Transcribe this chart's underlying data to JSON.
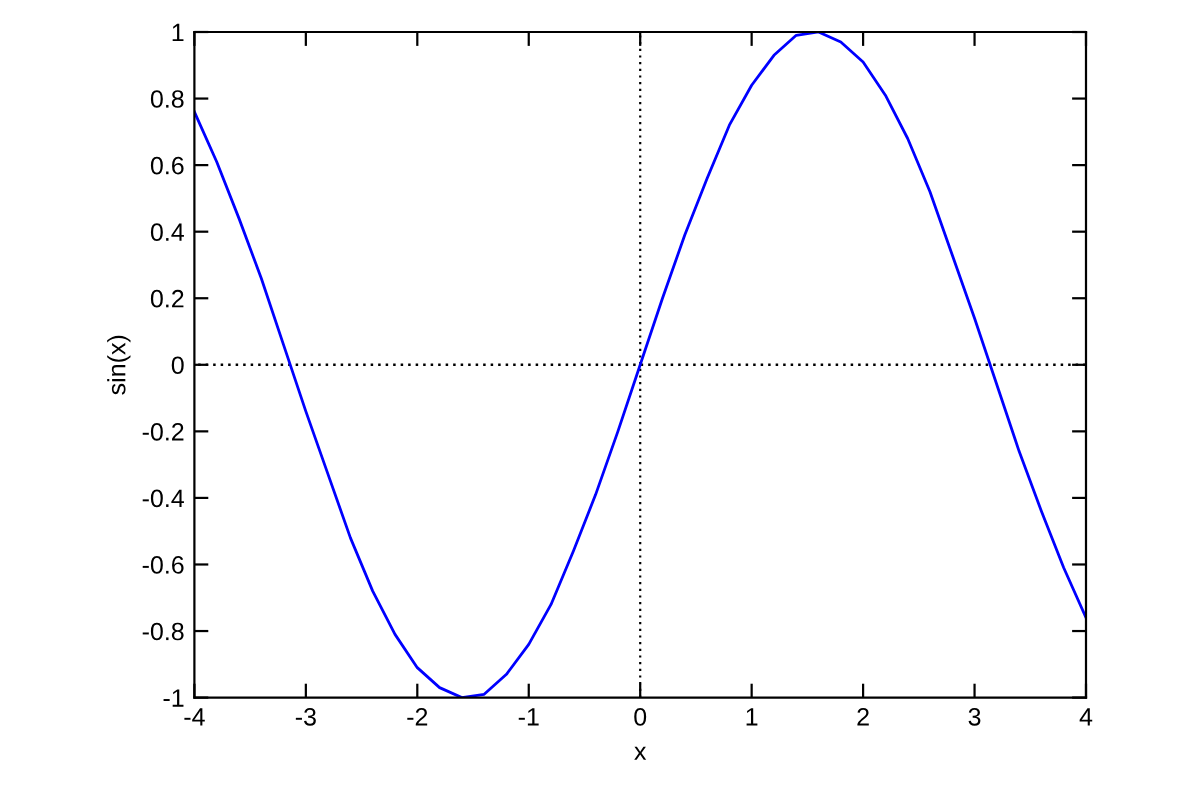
{
  "chart_data": {
    "type": "line",
    "xlabel": "x",
    "ylabel": "sin(x)",
    "x": [
      -4,
      -3.8,
      -3.6,
      -3.4,
      -3.2,
      -3.0,
      -2.8,
      -2.6,
      -2.4,
      -2.2,
      -2.0,
      -1.8,
      -1.6,
      -1.4,
      -1.2,
      -1.0,
      -0.8,
      -0.6,
      -0.4,
      -0.2,
      0,
      0.2,
      0.4,
      0.6,
      0.8,
      1.0,
      1.2,
      1.4,
      1.6,
      1.8,
      2.0,
      2.2,
      2.4,
      2.6,
      2.8,
      3.0,
      3.2,
      3.4,
      3.6,
      3.8,
      4
    ],
    "series": [
      {
        "color": "#0000ff",
        "values": [
          0.76,
          0.61,
          0.44,
          0.26,
          0.06,
          -0.14,
          -0.33,
          -0.52,
          -0.68,
          -0.81,
          -0.91,
          -0.97,
          -1.0,
          -0.99,
          -0.93,
          -0.84,
          -0.72,
          -0.56,
          -0.39,
          -0.2,
          0,
          0.2,
          0.39,
          0.56,
          0.72,
          0.84,
          0.93,
          0.99,
          1.0,
          0.97,
          0.91,
          0.81,
          0.68,
          0.52,
          0.33,
          0.14,
          -0.06,
          -0.26,
          -0.44,
          -0.61,
          -0.76
        ]
      }
    ],
    "xlim": [
      -4,
      4
    ],
    "ylim": [
      -1,
      1
    ],
    "xticks": [
      -4,
      -3,
      -2,
      -1,
      0,
      1,
      2,
      3,
      4
    ],
    "yticks": [
      -1,
      -0.8,
      -0.6,
      -0.4,
      -0.2,
      0,
      0.2,
      0.4,
      0.6,
      0.8,
      1
    ],
    "ref_lines": [
      {
        "axis": "x",
        "value": 0,
        "color": "#000000",
        "line_style": "dotted"
      },
      {
        "axis": "y",
        "value": 0,
        "color": "#000000",
        "line_style": "dotted"
      }
    ]
  }
}
